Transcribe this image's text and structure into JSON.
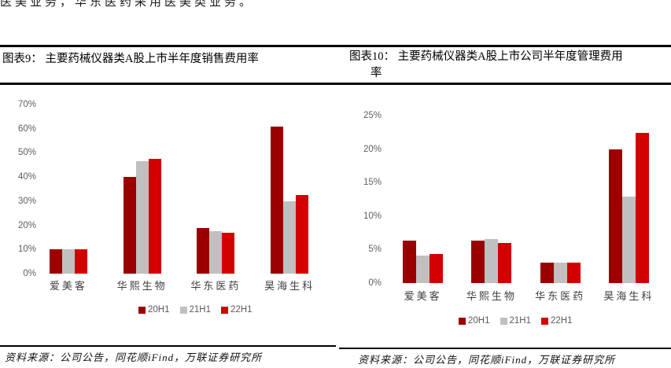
{
  "page": {
    "top_clipped_text": "医美业务，华东医药采用医美类业务。"
  },
  "figures": [
    {
      "title": "图表9： 主要药械仪器类A股上市半年度销售费用率",
      "title_line1": "图表9： 主要药械仪器类A股上市半年度销售费用率",
      "title_line2": "",
      "source": "资料来源：公司公告，同花顺iFind，万联证券研究所"
    },
    {
      "title": "图表10： 主要药械仪器类A股上市公司半年度管理费用率",
      "title_line1": "图表10： 主要药械仪器类A股上市公司半年度管理费用",
      "title_line2": "率",
      "source": "资料来源：公司公告，同花顺iFind，万联证券研究所"
    }
  ],
  "chart_data": [
    {
      "type": "bar",
      "title": "主要药械仪器类A股上市半年度销售费用率",
      "categories": [
        "爱美客",
        "华熙生物",
        "华东医药",
        "昊海生科"
      ],
      "series": [
        {
          "name": "20H1",
          "color": "#9B0000",
          "values": [
            10,
            40,
            19,
            61
          ]
        },
        {
          "name": "21H1",
          "color": "#C0C0C0",
          "values": [
            10,
            46.5,
            17.5,
            30
          ]
        },
        {
          "name": "22H1",
          "color": "#D40000",
          "values": [
            10,
            47.5,
            17,
            32.5
          ]
        }
      ],
      "ylim": [
        0,
        70
      ],
      "ytick_step": 10,
      "ytick_labels": [
        "0%",
        "10%",
        "20%",
        "30%",
        "40%",
        "50%",
        "60%",
        "70%"
      ],
      "xlabel": "",
      "ylabel": "",
      "grid": false,
      "legend_position": "bottom"
    },
    {
      "type": "bar",
      "title": "主要药械仪器类A股上市公司半年度管理费用率",
      "categories": [
        "爱美客",
        "华熙生物",
        "华东医药",
        "昊海生科"
      ],
      "series": [
        {
          "name": "20H1",
          "color": "#9B0000",
          "values": [
            6.3,
            6.3,
            3.0,
            20.0
          ]
        },
        {
          "name": "21H1",
          "color": "#C0C0C0",
          "values": [
            4.1,
            6.6,
            3.0,
            12.9
          ]
        },
        {
          "name": "22H1",
          "color": "#D40000",
          "values": [
            4.4,
            6.0,
            3.1,
            22.4
          ]
        }
      ],
      "ylim": [
        0,
        25
      ],
      "ytick_step": 5,
      "ytick_labels": [
        "0%",
        "5%",
        "10%",
        "15%",
        "20%",
        "25%"
      ],
      "xlabel": "",
      "ylabel": "",
      "grid": false,
      "legend_position": "bottom"
    }
  ]
}
